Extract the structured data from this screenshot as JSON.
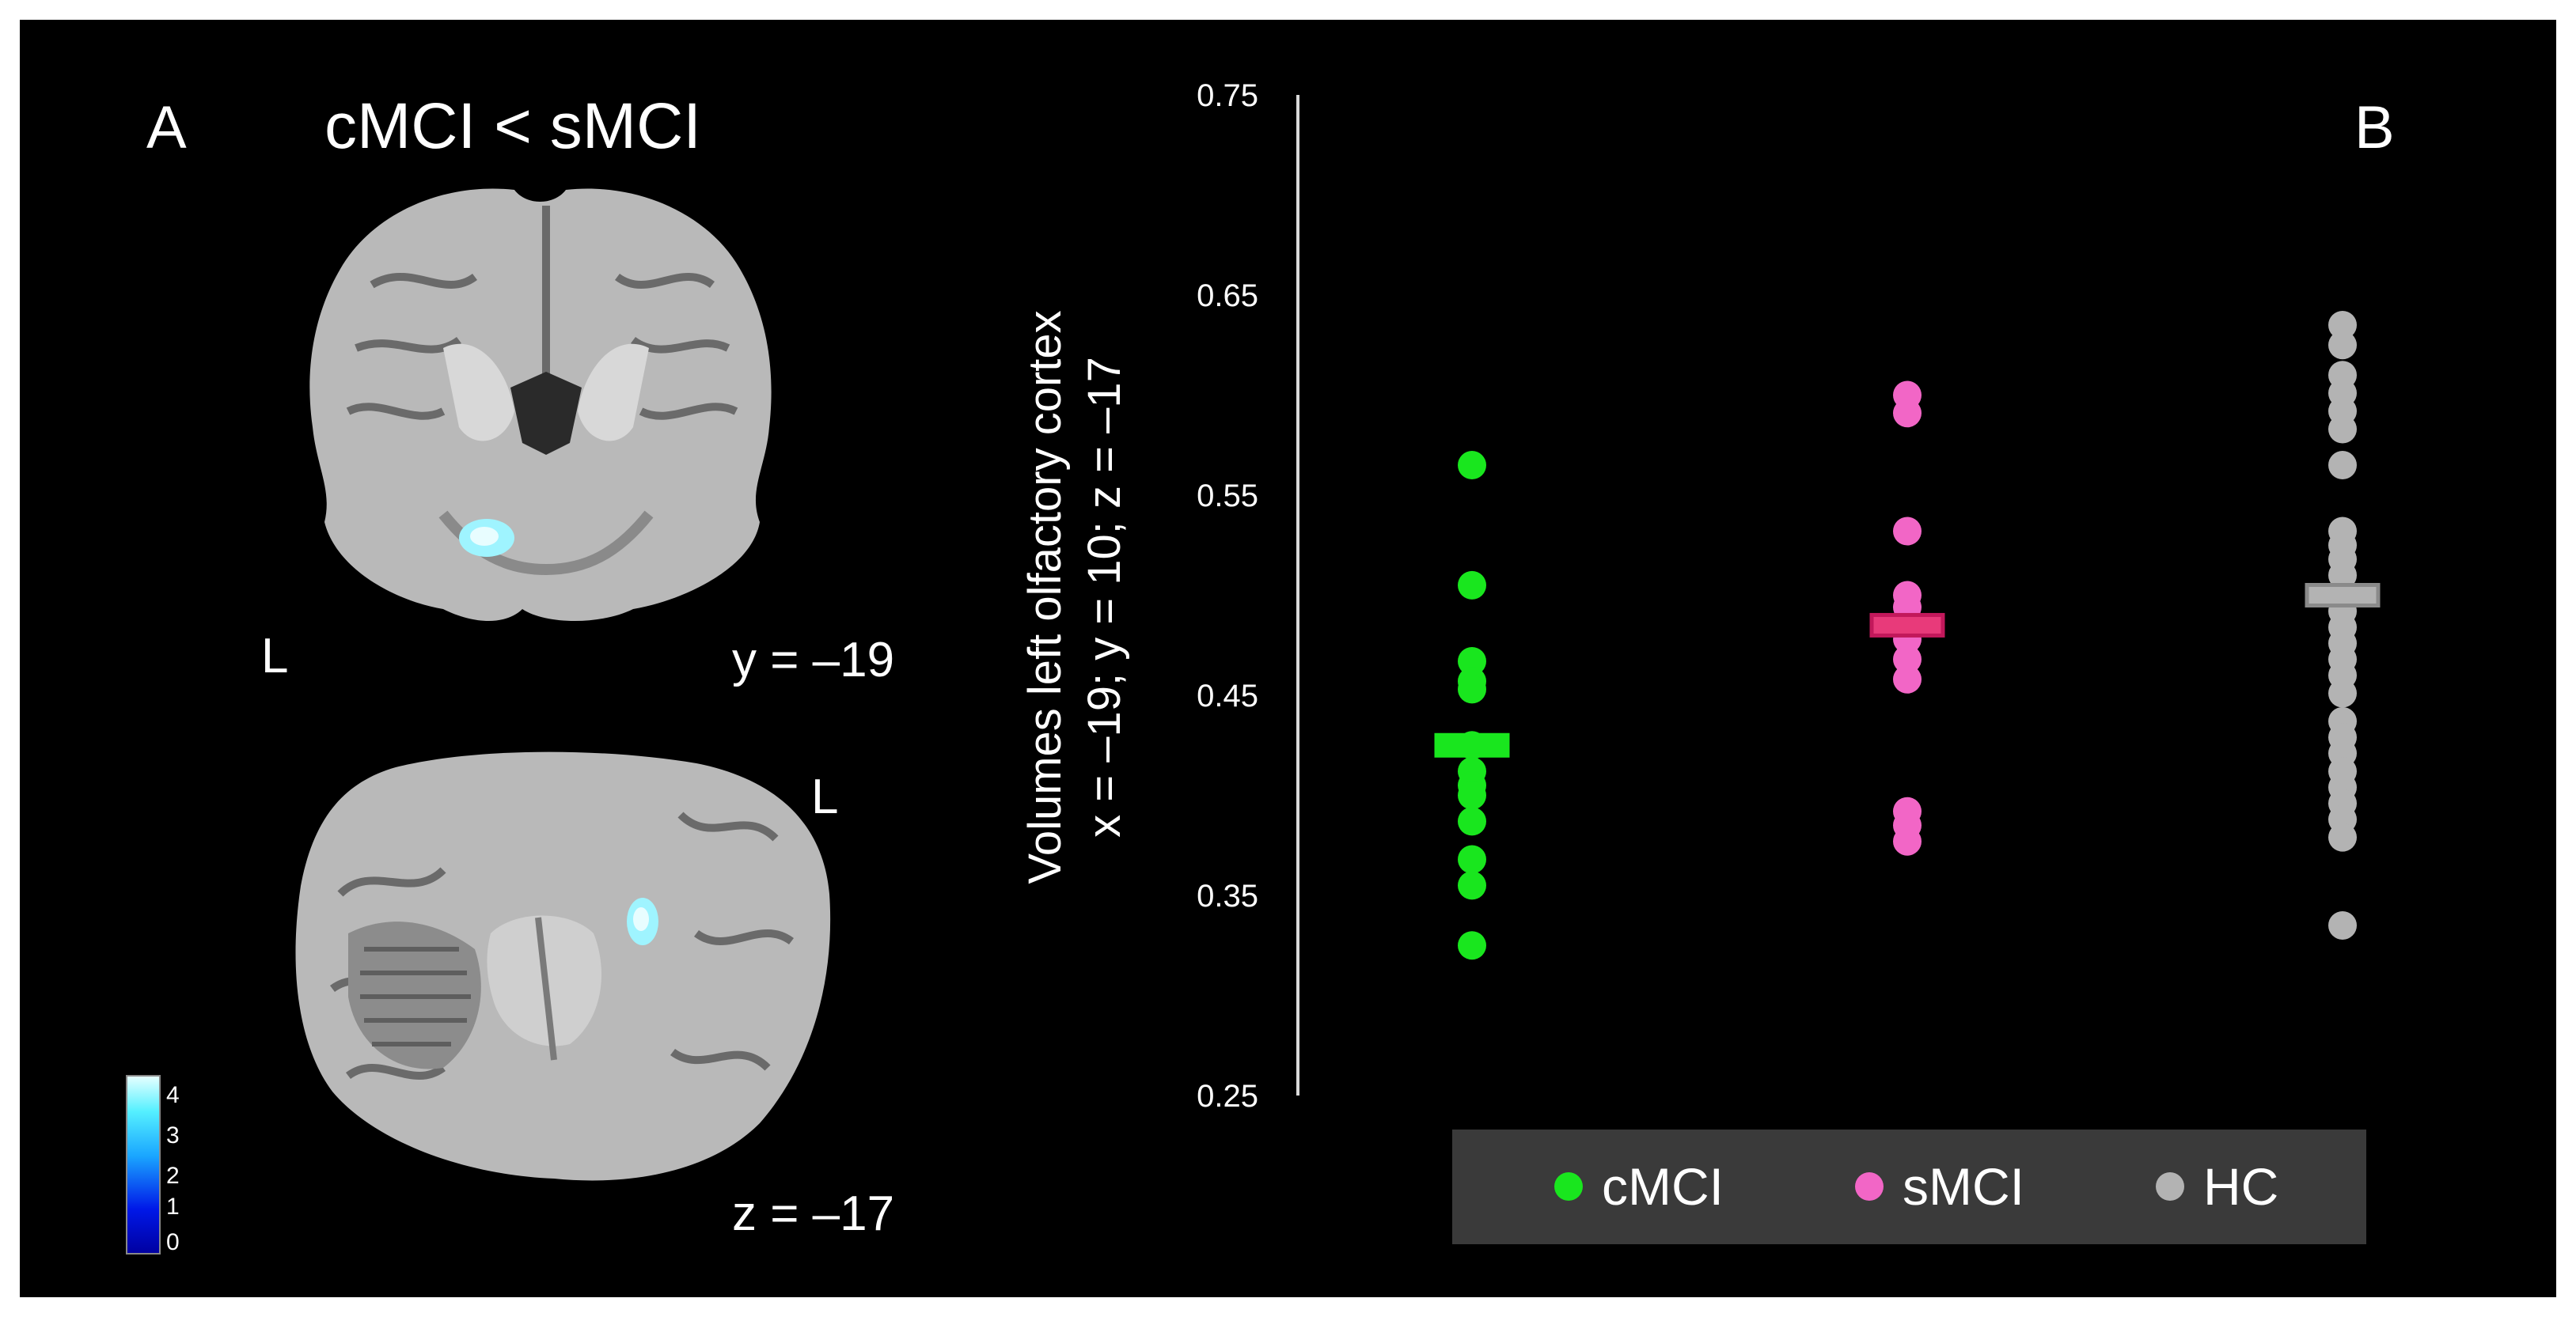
{
  "colors": {
    "background": "#000000",
    "cMCI": "#19e61e",
    "sMCI": "#f266c6",
    "sMCI_mean": "#e83a7a",
    "HC": "#b3b3b3",
    "legend_bg": "#3a3a3a"
  },
  "panel_a": {
    "label": "A",
    "title": "cMCI < sMCI",
    "coronal": {
      "side_label": "L",
      "coord_label": "y = –19"
    },
    "axial": {
      "side_label": "L",
      "coord_label": "z = –17"
    },
    "colorbar": {
      "ticks": [
        "4",
        "3",
        "2",
        "1",
        "0"
      ]
    }
  },
  "chart_data": {
    "type": "scatter",
    "panel_label": "B",
    "ylabel": "Volumes left olfactory cortex",
    "ylabel2": "x = –19; y = 10; z = –17",
    "ylim": [
      0.25,
      0.75
    ],
    "yticks": [
      0.25,
      0.35,
      0.45,
      0.55,
      0.65,
      0.75
    ],
    "ytick_labels": [
      "0.25",
      "0.35",
      "0.45",
      "0.55",
      "0.65",
      "0.75"
    ],
    "grid": false,
    "legend_position": "bottom",
    "series": [
      {
        "name": "cMCI",
        "mean": 0.425,
        "values": [
          0.565,
          0.505,
          0.467,
          0.457,
          0.453,
          0.425,
          0.412,
          0.405,
          0.4,
          0.387,
          0.368,
          0.355,
          0.325
        ]
      },
      {
        "name": "sMCI",
        "mean": 0.485,
        "values": [
          0.6,
          0.591,
          0.532,
          0.5,
          0.494,
          0.486,
          0.478,
          0.468,
          0.458,
          0.392,
          0.385,
          0.377
        ]
      },
      {
        "name": "HC",
        "mean": 0.5,
        "values": [
          0.635,
          0.625,
          0.61,
          0.601,
          0.592,
          0.583,
          0.565,
          0.532,
          0.525,
          0.518,
          0.51,
          0.5,
          0.492,
          0.484,
          0.476,
          0.468,
          0.46,
          0.451,
          0.437,
          0.429,
          0.421,
          0.412,
          0.404,
          0.396,
          0.388,
          0.379,
          0.335
        ]
      }
    ]
  }
}
